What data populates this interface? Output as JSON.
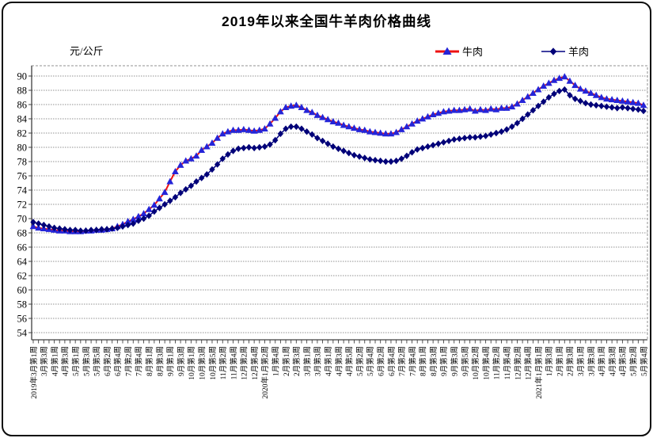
{
  "title": "2019年以来全国牛羊肉价格曲线",
  "unit_label": "元/公斤",
  "colors": {
    "beef_line": "#ee1111",
    "beef_marker": "#2424d8",
    "mutton_line": "#000080",
    "mutton_marker": "#000078",
    "grid": "#909090",
    "axis": "#404040",
    "text": "#000000"
  },
  "chart_data": {
    "type": "line",
    "title": "2019年以来全国牛羊肉价格曲线",
    "xlabel": "",
    "ylabel": "元/公斤",
    "ylim": [
      54,
      90
    ],
    "ytick_step": 2,
    "grid": true,
    "legend_position": "top",
    "y_ticks": [
      90,
      88,
      86,
      84,
      82,
      80,
      78,
      76,
      74,
      72,
      70,
      68,
      66,
      64,
      62,
      60,
      58,
      56,
      54
    ],
    "x_tick_labels": [
      "2019年3月第1周",
      "3月第3周",
      "4月第1周",
      "4月第3周",
      "5月第1周",
      "5月第3周",
      "5月第5周",
      "6月第2周",
      "6月第4周",
      "7月第2周",
      "7月第4周",
      "8月第1周",
      "8月第3周",
      "9月第1周",
      "9月第3周",
      "10月第1周",
      "10月第3周",
      "10月第5周",
      "11月第2周",
      "11月第4周",
      "12月第2周",
      "12月第4周",
      "2020年1月第2周",
      "1月第4周",
      "2月第1周",
      "2月第3周",
      "3月第1周",
      "3月第3周",
      "4月第1周",
      "4月第3周",
      "4月第5周",
      "5月第2周",
      "5月第4周",
      "6月第2周",
      "6月第4周",
      "7月第2周",
      "7月第4周",
      "8月第1周",
      "8月第3周",
      "9月第1周",
      "9月第3周",
      "9月第5周",
      "10月第2周",
      "10月第4周",
      "11月第2周",
      "11月第4周",
      "12月第2周",
      "12月第4周",
      "2021年1月第1周",
      "1月第3周",
      "2月第1周",
      "2月第3周",
      "3月第1周",
      "3月第3周",
      "4月第1周",
      "4月第3周",
      "4月第5周",
      "5月第2周",
      "5月第4周"
    ],
    "labels_every_n_points": 2,
    "series": [
      {
        "name": "牛肉",
        "line_color": "#ee1111",
        "marker": "triangle",
        "marker_color": "#2424d8",
        "values": [
          68.9,
          68.7,
          68.6,
          68.5,
          68.4,
          68.3,
          68.3,
          68.2,
          68.2,
          68.2,
          68.3,
          68.3,
          68.4,
          68.4,
          68.5,
          68.6,
          68.9,
          69.2,
          69.6,
          69.9,
          70.3,
          70.7,
          71.3,
          71.9,
          72.8,
          73.7,
          75.2,
          76.6,
          77.5,
          78.1,
          78.4,
          78.8,
          79.6,
          80.1,
          80.6,
          81.3,
          81.9,
          82.2,
          82.4,
          82.4,
          82.5,
          82.4,
          82.3,
          82.4,
          82.6,
          83.3,
          84.1,
          85.0,
          85.6,
          85.8,
          85.9,
          85.6,
          85.2,
          84.9,
          84.5,
          84.2,
          83.9,
          83.6,
          83.4,
          83.1,
          82.9,
          82.7,
          82.5,
          82.4,
          82.2,
          82.1,
          82.0,
          81.9,
          81.9,
          82.1,
          82.5,
          82.9,
          83.3,
          83.7,
          84.0,
          84.3,
          84.6,
          84.8,
          85.0,
          85.1,
          85.2,
          85.2,
          85.3,
          85.4,
          85.1,
          85.3,
          85.2,
          85.4,
          85.3,
          85.5,
          85.5,
          85.7,
          86.1,
          86.6,
          87.1,
          87.6,
          88.1,
          88.6,
          89.0,
          89.4,
          89.7,
          89.9,
          89.3,
          88.7,
          88.2,
          87.9,
          87.6,
          87.3,
          87.0,
          86.8,
          86.7,
          86.6,
          86.5,
          86.4,
          86.3,
          86.2,
          85.9
        ]
      },
      {
        "name": "羊肉",
        "line_color": "#000080",
        "marker": "diamond",
        "marker_color": "#000078",
        "values": [
          69.5,
          69.3,
          69.1,
          68.9,
          68.7,
          68.6,
          68.5,
          68.4,
          68.4,
          68.3,
          68.3,
          68.4,
          68.4,
          68.5,
          68.5,
          68.6,
          68.7,
          68.9,
          69.1,
          69.3,
          69.7,
          70.0,
          70.4,
          71.0,
          71.5,
          72.0,
          72.5,
          73.0,
          73.6,
          74.1,
          74.6,
          75.2,
          75.7,
          76.2,
          76.9,
          77.6,
          78.4,
          79.0,
          79.5,
          79.8,
          79.9,
          80.0,
          79.9,
          80.0,
          80.1,
          80.4,
          81.0,
          81.9,
          82.6,
          82.9,
          82.9,
          82.6,
          82.2,
          81.8,
          81.3,
          80.9,
          80.5,
          80.1,
          79.8,
          79.5,
          79.2,
          78.9,
          78.7,
          78.5,
          78.3,
          78.2,
          78.1,
          78.0,
          78.0,
          78.1,
          78.4,
          78.8,
          79.3,
          79.7,
          79.9,
          80.1,
          80.3,
          80.5,
          80.7,
          80.9,
          81.1,
          81.2,
          81.3,
          81.4,
          81.4,
          81.5,
          81.6,
          81.8,
          82.0,
          82.2,
          82.5,
          82.9,
          83.4,
          84.0,
          84.6,
          85.2,
          85.8,
          86.4,
          87.0,
          87.5,
          87.9,
          88.1,
          87.3,
          86.8,
          86.5,
          86.2,
          86.0,
          85.9,
          85.8,
          85.7,
          85.6,
          85.5,
          85.6,
          85.5,
          85.4,
          85.3,
          85.1
        ]
      }
    ]
  }
}
